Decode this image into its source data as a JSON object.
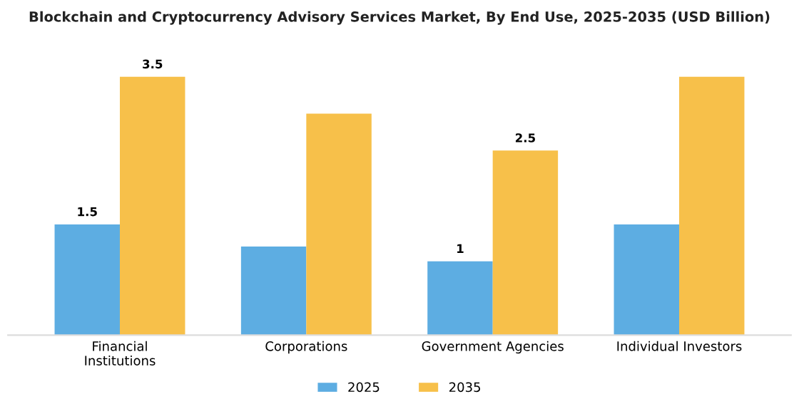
{
  "chart_data": {
    "type": "bar",
    "title": "Blockchain and Cryptocurrency Advisory Services Market, By End Use, 2025-2035 (USD Billion)",
    "categories": [
      "Financial\nInstitutions",
      "Corporations",
      "Government Agencies",
      "Individual Investors"
    ],
    "series": [
      {
        "name": "2025",
        "color": "#5dade2",
        "values": [
          1.5,
          1.2,
          1.0,
          1.5
        ],
        "value_labels": [
          "1.5",
          null,
          "1",
          null
        ]
      },
      {
        "name": "2035",
        "color": "#f7c04a",
        "values": [
          3.5,
          3.0,
          2.5,
          3.5
        ],
        "value_labels": [
          "3.5",
          null,
          "2.5",
          null
        ]
      }
    ],
    "tick_labels": "x",
    "legend": "bottom",
    "grid": false
  }
}
